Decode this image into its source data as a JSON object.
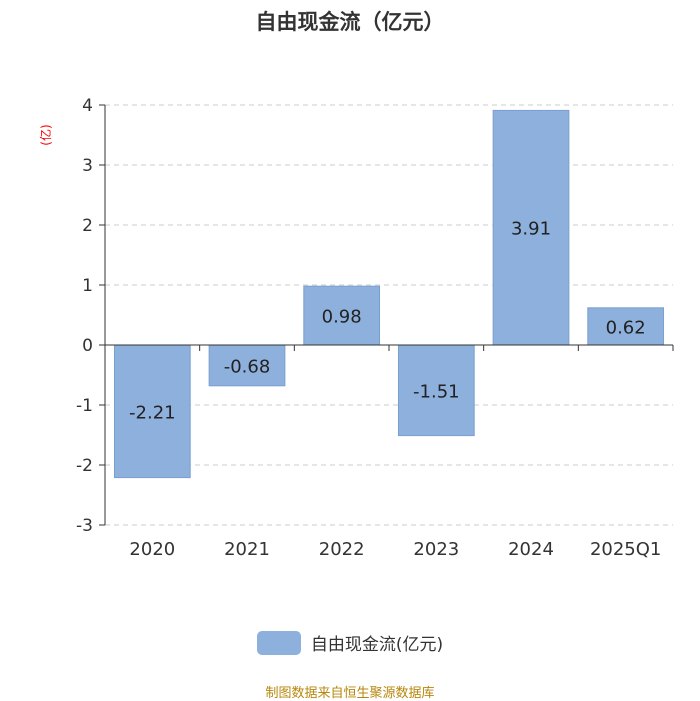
{
  "chart_data": {
    "type": "bar",
    "title": "自由现金流（亿元）",
    "ylabel": "(亿)",
    "categories": [
      "2020",
      "2021",
      "2022",
      "2023",
      "2024",
      "2025Q1"
    ],
    "series": [
      {
        "name": "自由现金流(亿元)",
        "values": [
          -2.21,
          -0.68,
          0.98,
          -1.51,
          3.91,
          0.62
        ]
      }
    ],
    "data_labels": [
      "-2.21",
      "-0.68",
      "0.98",
      "-1.51",
      "3.91",
      "0.62"
    ],
    "yticks": [
      4,
      3,
      2,
      1,
      0,
      -1,
      -2,
      -3
    ],
    "ytick_labels": [
      "4",
      "3",
      "2",
      "1",
      "0",
      "-1",
      "-2",
      "-3"
    ],
    "ylim": [
      -3,
      4
    ],
    "grid": true,
    "legend_position": "bottom-center",
    "colors": {
      "bar": "#8eb0dc",
      "bar_edge": "#7a9fd0",
      "grid": "#cccccc",
      "axis": "#333333",
      "ylabel": "#ff0000",
      "source": "#b8860b"
    }
  },
  "footer": {
    "source": "制图数据来自恒生聚源数据库"
  }
}
